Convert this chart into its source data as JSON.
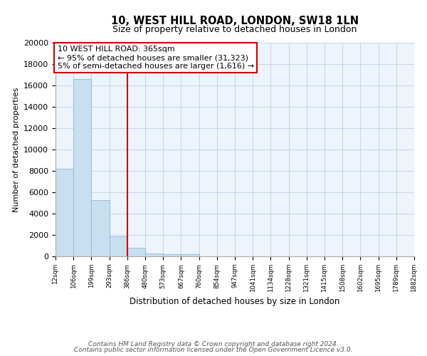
{
  "title": "10, WEST HILL ROAD, LONDON, SW18 1LN",
  "subtitle": "Size of property relative to detached houses in London",
  "xlabel": "Distribution of detached houses by size in London",
  "ylabel": "Number of detached properties",
  "bar_values": [
    8200,
    16600,
    5300,
    1850,
    800,
    300,
    200,
    175,
    0,
    0,
    0,
    0,
    0,
    0,
    0,
    0,
    0,
    0,
    0,
    0
  ],
  "bin_labels": [
    "12sqm",
    "106sqm",
    "199sqm",
    "293sqm",
    "386sqm",
    "480sqm",
    "573sqm",
    "667sqm",
    "760sqm",
    "854sqm",
    "947sqm",
    "1041sqm",
    "1134sqm",
    "1228sqm",
    "1321sqm",
    "1415sqm",
    "1508sqm",
    "1602sqm",
    "1695sqm",
    "1789sqm",
    "1882sqm"
  ],
  "bar_color": "#c8dff0",
  "bar_edge_color": "#89b8d4",
  "vline_x_index": 3,
  "vline_color": "#cc0000",
  "annotation_line1": "10 WEST HILL ROAD: 365sqm",
  "annotation_line2": "← 95% of detached houses are smaller (31,323)",
  "annotation_line3": "5% of semi-detached houses are larger (1,616) →",
  "annotation_box_color": "#ffffff",
  "annotation_box_edge": "#cc0000",
  "ylim": [
    0,
    20000
  ],
  "yticks": [
    0,
    2000,
    4000,
    6000,
    8000,
    10000,
    12000,
    14000,
    16000,
    18000,
    20000
  ],
  "footer_line1": "Contains HM Land Registry data © Crown copyright and database right 2024.",
  "footer_line2": "Contains public sector information licensed under the Open Government Licence v3.0.",
  "background_color": "#ffffff",
  "plot_bg_color": "#eef4fb",
  "grid_color": "#c5d8ea"
}
